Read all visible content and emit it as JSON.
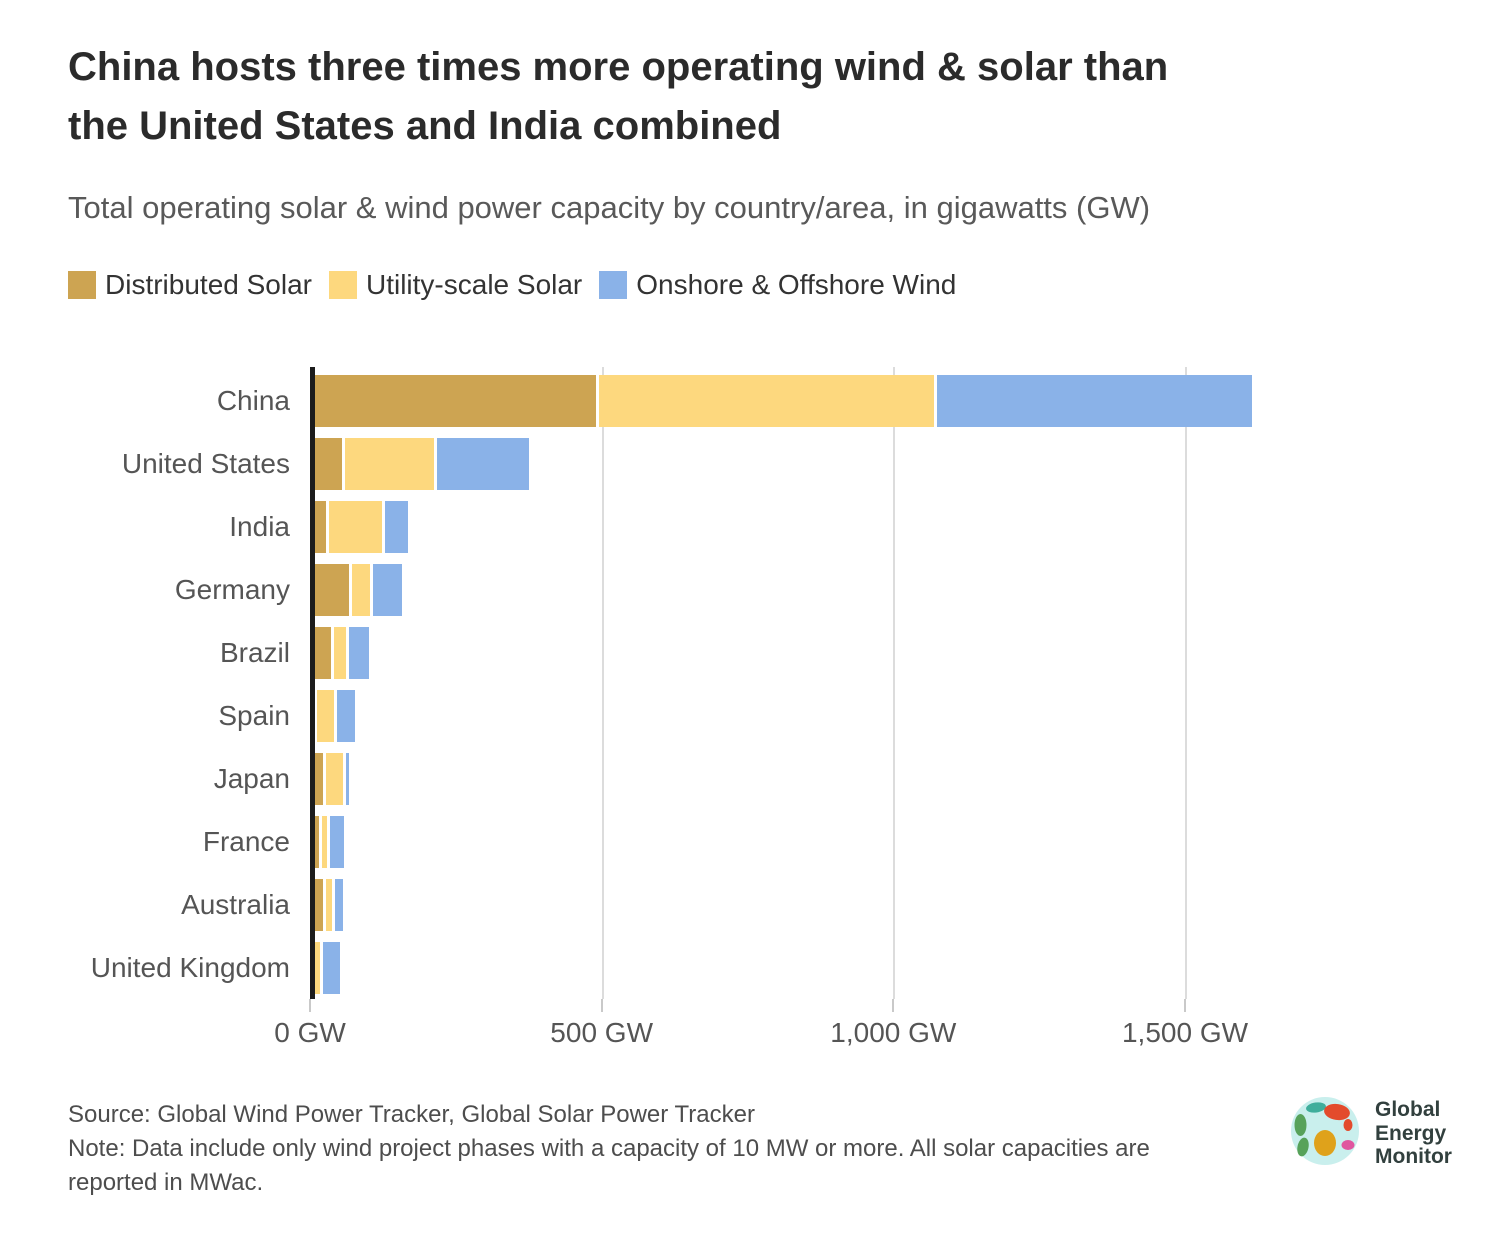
{
  "header": {
    "title_lines": [
      "China hosts three times more operating wind & solar than",
      "the United States and India combined"
    ],
    "subtitle": "Total operating solar & wind power capacity by country/area, in gigawatts (GW)"
  },
  "chart_data": {
    "type": "bar",
    "orientation": "horizontal",
    "stacked": true,
    "title": "Total operating solar & wind power capacity by country/area, in gigawatts (GW)",
    "categories": [
      "China",
      "United States",
      "India",
      "Germany",
      "Brazil",
      "Spain",
      "Japan",
      "France",
      "Australia",
      "United Kingdom"
    ],
    "series": [
      {
        "name": "Distributed Solar",
        "color": "#CDA452",
        "values": [
          490,
          55,
          27,
          67,
          36,
          6,
          22,
          15,
          22,
          3
        ]
      },
      {
        "name": "Utility-scale Solar",
        "color": "#FDD87E",
        "values": [
          575,
          152,
          92,
          31,
          21,
          30,
          30,
          9,
          11,
          9
        ]
      },
      {
        "name": "Onshore & Offshore Wind",
        "color": "#8AB2E8",
        "values": [
          540,
          158,
          38,
          49,
          34,
          30,
          4,
          24,
          13,
          29
        ]
      }
    ],
    "x_axis": {
      "unit": "GW",
      "ticks": [
        0,
        500,
        1000,
        1500
      ],
      "tick_labels": [
        "0 GW",
        "500 GW",
        "1,000 GW",
        "1,500 GW"
      ],
      "max": 1600
    },
    "grid": "vertical",
    "legend_position": "top",
    "colors": {
      "axis": "#1c1c1c",
      "gridline": "#dcdcdc",
      "background": "#ffffff"
    }
  },
  "footer": {
    "source": "Source: Global Wind Power Tracker, Global Solar Power Tracker",
    "note_lines": [
      "Note: Data include only wind project phases with a capacity of 10 MW or more. All solar capacities are",
      "reported in MWac."
    ],
    "logo_text_lines": [
      "Global",
      "Energy",
      "Monitor"
    ]
  }
}
